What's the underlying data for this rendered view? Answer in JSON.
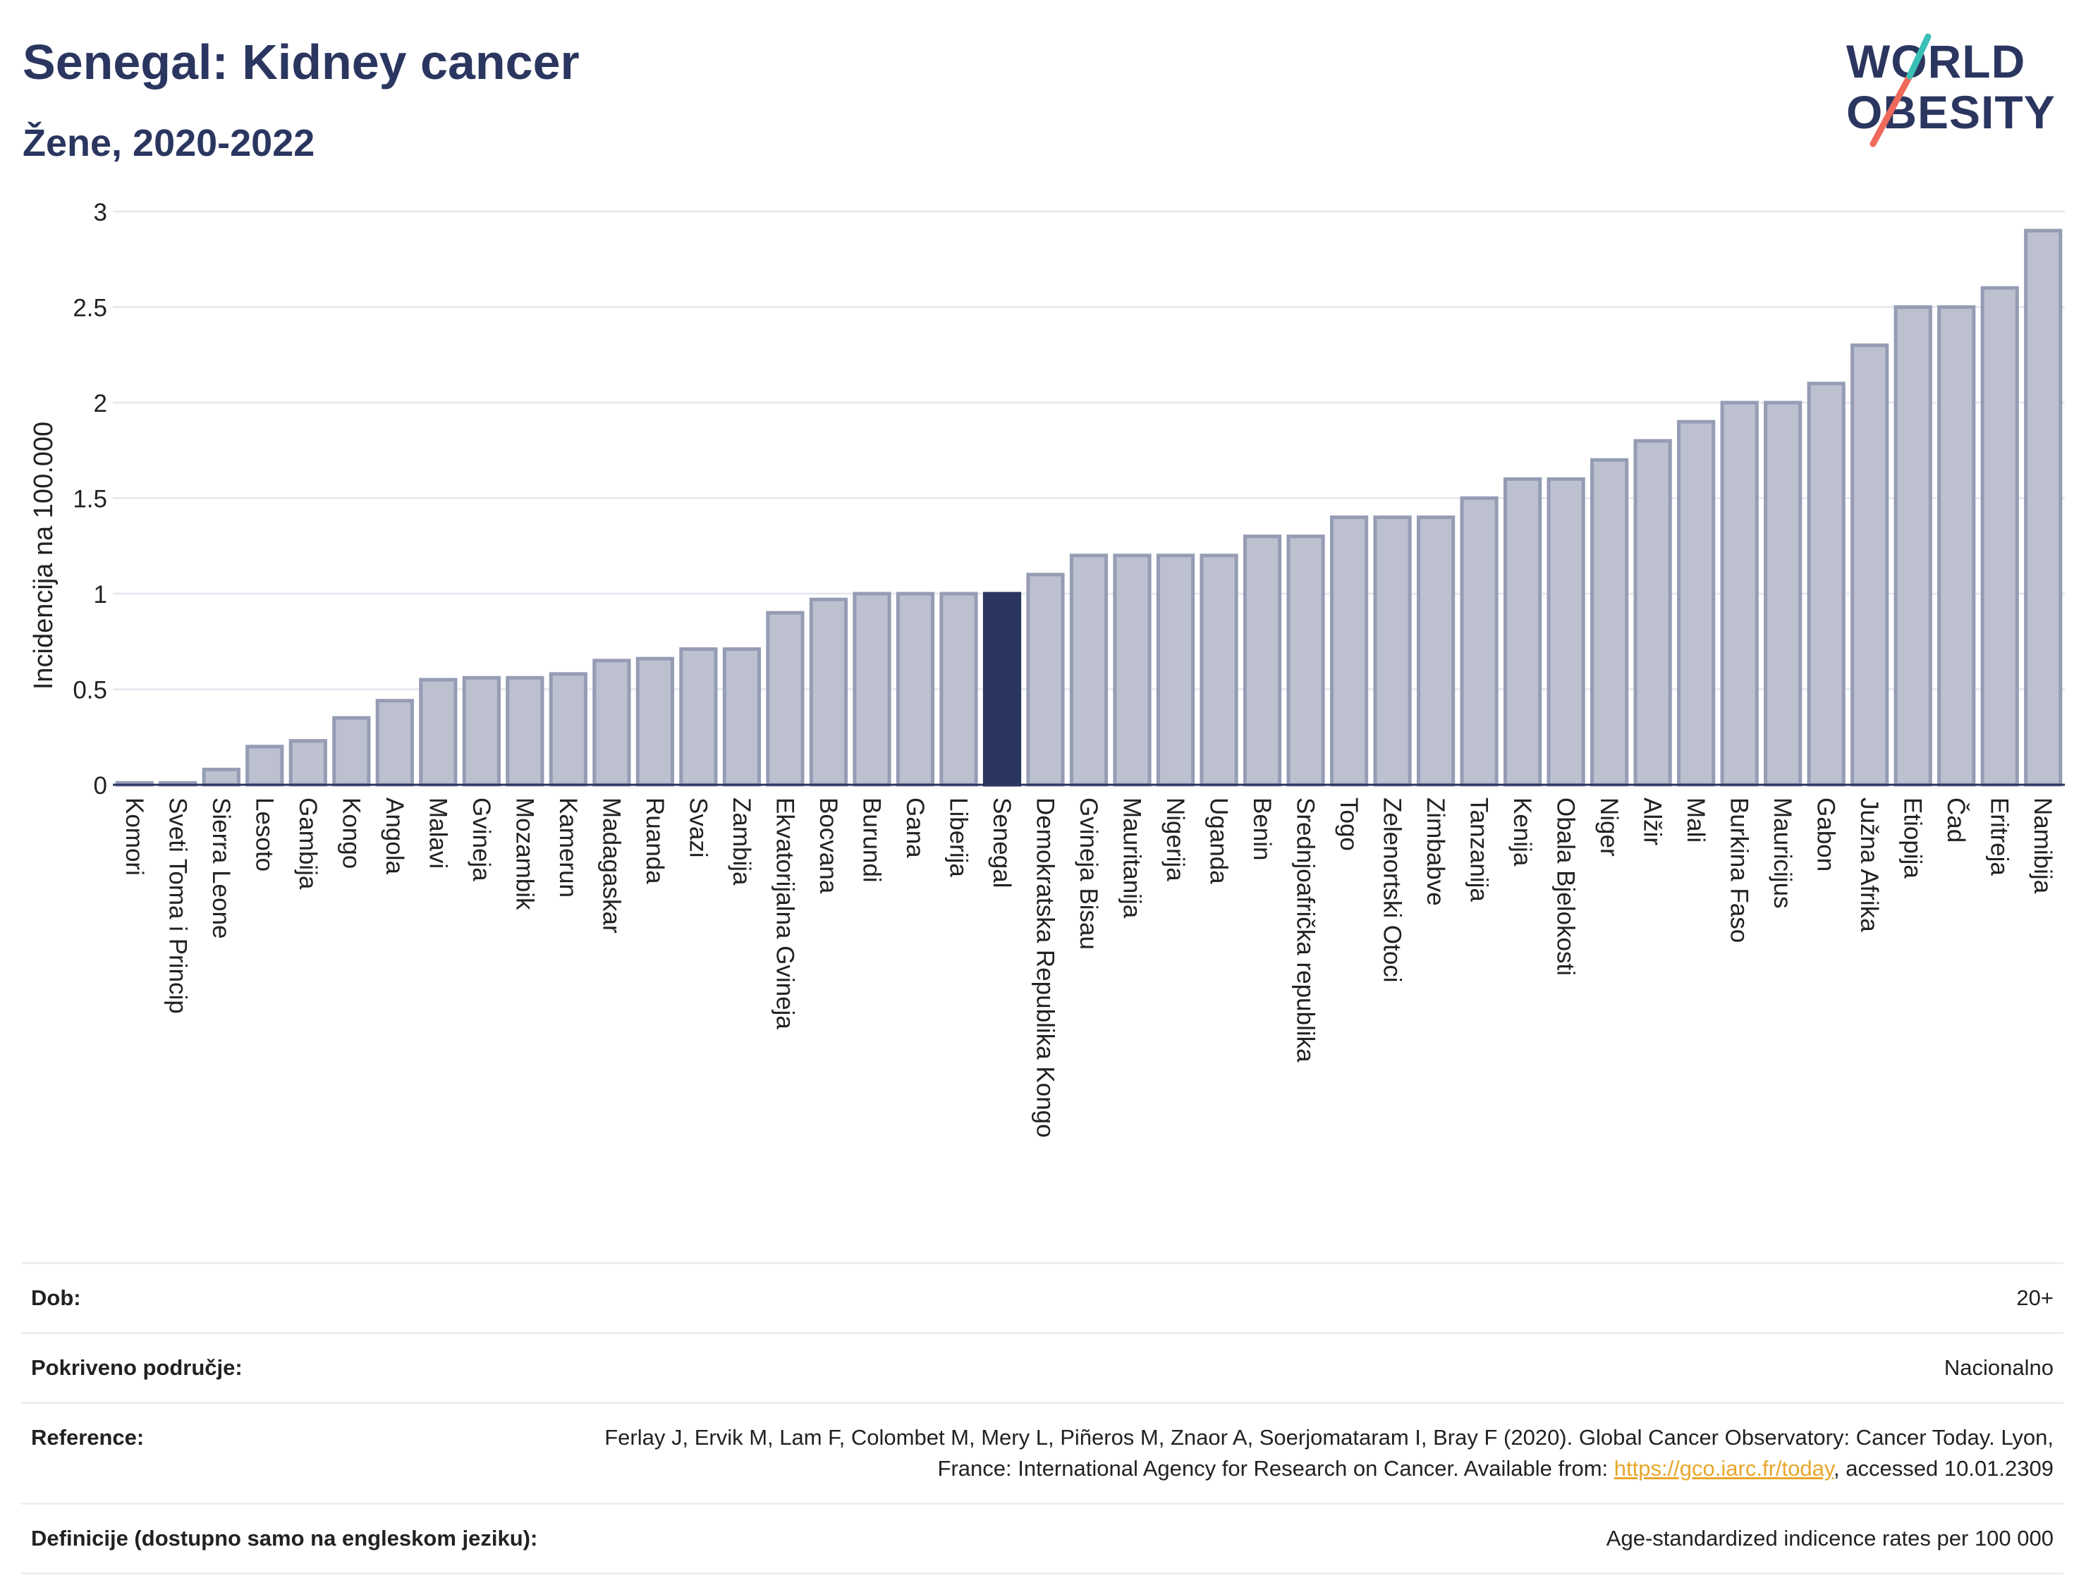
{
  "header": {
    "title": "Senegal: Kidney cancer",
    "subtitle": "Žene, 2020-2022"
  },
  "logo": {
    "line1": "WORLD",
    "line2": "OBESITY"
  },
  "colors": {
    "bar": "#bcc0cf",
    "bar_stroke": "#959cb4",
    "highlight": "#2b3660",
    "grid": "#e8eaf0"
  },
  "chart_data": {
    "type": "bar",
    "ylabel": "Incidencija na 100.000",
    "xlabel": "",
    "ylim": [
      0,
      3
    ],
    "yticks": [
      0,
      0.5,
      1,
      1.5,
      2,
      2.5,
      3
    ],
    "highlight": "Senegal",
    "grid": true,
    "categories": [
      "Komori",
      "Sveti Toma i Princip",
      "Sierra Leone",
      "Lesoto",
      "Gambija",
      "Kongo",
      "Angola",
      "Malavi",
      "Gvineja",
      "Mozambik",
      "Kamerun",
      "Madagaskar",
      "Ruanda",
      "Svazi",
      "Zambija",
      "Ekvatorijalna Gvineja",
      "Bocvana",
      "Burundi",
      "Gana",
      "Liberija",
      "Senegal",
      "Demokratska Republika Kongo",
      "Gvineja Bisau",
      "Mauritanija",
      "Nigerija",
      "Uganda",
      "Benin",
      "Srednjoafrička republika",
      "Togo",
      "Zelenortski Otoci",
      "Zimbabve",
      "Tanzanija",
      "Kenija",
      "Obala Bjelokosti",
      "Niger",
      "Alžir",
      "Mali",
      "Burkina Faso",
      "Mauricijus",
      "Gabon",
      "Južna Afrika",
      "Etiopija",
      "Čad",
      "Eritreja",
      "Namibija"
    ],
    "values": [
      0.01,
      0.01,
      0.08,
      0.2,
      0.23,
      0.35,
      0.44,
      0.55,
      0.56,
      0.56,
      0.58,
      0.65,
      0.66,
      0.71,
      0.71,
      0.9,
      0.97,
      1.0,
      1.0,
      1.0,
      1.0,
      1.1,
      1.2,
      1.2,
      1.2,
      1.2,
      1.3,
      1.3,
      1.4,
      1.4,
      1.4,
      1.5,
      1.6,
      1.6,
      1.7,
      1.8,
      1.9,
      2.0,
      2.0,
      2.1,
      2.3,
      2.5,
      2.5,
      2.6,
      2.9
    ]
  },
  "info": {
    "dob_label": "Dob:",
    "dob_value": "20+",
    "area_label": "Pokriveno područje:",
    "area_value": "Nacionalno",
    "ref_label": "Reference:",
    "ref_text": "Ferlay J, Ervik M, Lam F, Colombet M, Mery L, Piñeros M, Znaor A, Soerjomataram I, Bray F (2020). Global Cancer Observatory: Cancer Today. Lyon, France: International Agency for Research on Cancer. Available from: ",
    "ref_link": "https://gco.iarc.fr/today",
    "ref_suffix": ", accessed 10.01.2309",
    "def_label": "Definicije (dostupno samo na engleskom jeziku):",
    "def_value": "Age-standardized indicence rates per 100 000"
  }
}
